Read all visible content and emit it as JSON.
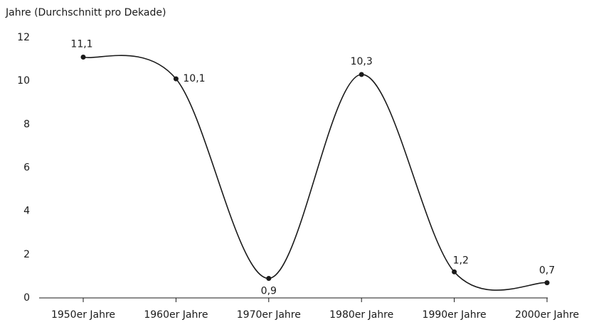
{
  "chart_data": {
    "type": "line",
    "y_label": "Jahre (Durchschnitt pro Dekade)",
    "categories": [
      "1950er Jahre",
      "1960er Jahre",
      "1970er Jahre",
      "1980er Jahre",
      "1990er Jahre",
      "2000er Jahre"
    ],
    "series": [
      {
        "name": "Jahre",
        "color": "#1a1a1a",
        "values": [
          11.1,
          10.1,
          0.9,
          10.3,
          1.2,
          0.7
        ],
        "value_labels": [
          "11,1",
          "10,1",
          "0,9",
          "10,3",
          "1,2",
          "0,7"
        ]
      }
    ],
    "ylim": [
      0,
      12
    ],
    "yticks": [
      0,
      2,
      4,
      6,
      8,
      10,
      12
    ],
    "smooth": true
  }
}
